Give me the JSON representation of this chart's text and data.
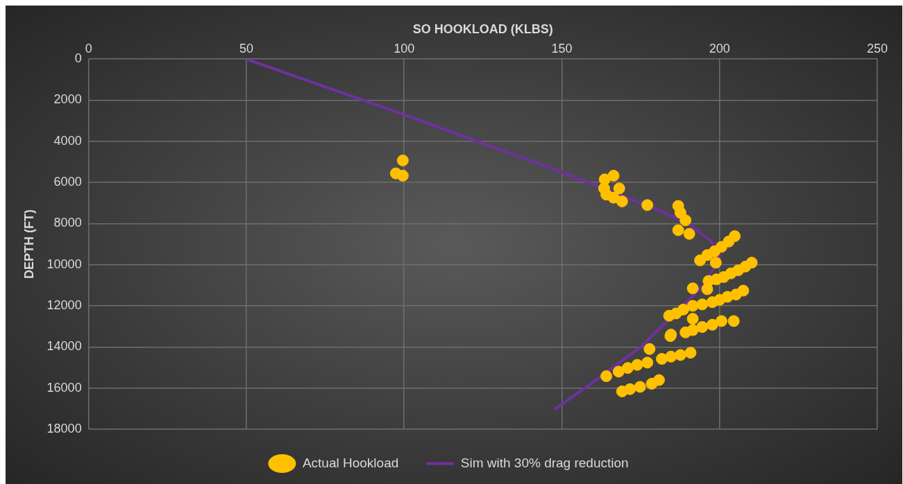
{
  "chart_data": {
    "type": "scatter",
    "xlabel": "SO HOOKLOAD (KLBS)",
    "ylabel": "DEPTH (FT)",
    "xlim": [
      0,
      250
    ],
    "xticks": [
      0,
      50,
      100,
      150,
      200,
      250
    ],
    "ylim": [
      18000,
      0
    ],
    "yticks": [
      0,
      2000,
      4000,
      6000,
      8000,
      10000,
      12000,
      14000,
      16000,
      18000
    ],
    "grid": true,
    "legend": "bottom",
    "marker": "circle",
    "series": [
      {
        "name": "Actual Hookload",
        "color": "#ffc000",
        "x": [
          99.6,
          97.4,
          99.6,
          166.4,
          163.6,
          163.4,
          168.2,
          164.1,
          169.1,
          166.4,
          177.1,
          186.9,
          187.6,
          189.2,
          186.9,
          190.4,
          204.8,
          202.9,
          200.6,
          198.4,
          196.1,
          193.8,
          198.8,
          210.2,
          208.2,
          205.9,
          203.6,
          201.3,
          199.0,
          196.5,
          196.1,
          191.5,
          207.5,
          205.2,
          202.5,
          200.0,
          197.7,
          194.5,
          191.5,
          188.5,
          186.2,
          184.0,
          191.5,
          204.5,
          200.6,
          197.7,
          194.5,
          191.5,
          189.2,
          184.6,
          190.8,
          187.6,
          184.6,
          181.7,
          177.8,
          177.1,
          173.9,
          170.9,
          168.0,
          164.1,
          180.8,
          178.5,
          174.8,
          171.6,
          169.1,
          184.4
        ],
        "values": [
          4930,
          5560,
          5670,
          5670,
          5850,
          6290,
          6290,
          6590,
          6920,
          6740,
          7100,
          7140,
          7470,
          7840,
          8320,
          8500,
          8610,
          8870,
          9130,
          9350,
          9530,
          9790,
          9900,
          9900,
          10090,
          10270,
          10420,
          10600,
          10710,
          10790,
          11190,
          11150,
          11260,
          11450,
          11560,
          11710,
          11820,
          11930,
          12000,
          12180,
          12370,
          12480,
          12630,
          12740,
          12740,
          12920,
          13030,
          13180,
          13290,
          13400,
          14280,
          14390,
          14470,
          14580,
          14100,
          14760,
          14870,
          15020,
          15200,
          15420,
          15610,
          15790,
          15940,
          16050,
          16160,
          13470
        ]
      },
      {
        "name": "Sim with 30% drag reduction",
        "color": "#7030a0",
        "type": "line",
        "marker": "none",
        "line_style": "solid",
        "x": [
          50,
          100,
          150,
          165,
          180,
          190,
          197,
          200,
          198,
          195,
          185,
          175,
          160,
          148
        ],
        "values": [
          0,
          2700,
          5500,
          6400,
          7300,
          8000,
          8800,
          9500,
          10200,
          11000,
          12500,
          14000,
          15700,
          17000
        ]
      }
    ]
  }
}
